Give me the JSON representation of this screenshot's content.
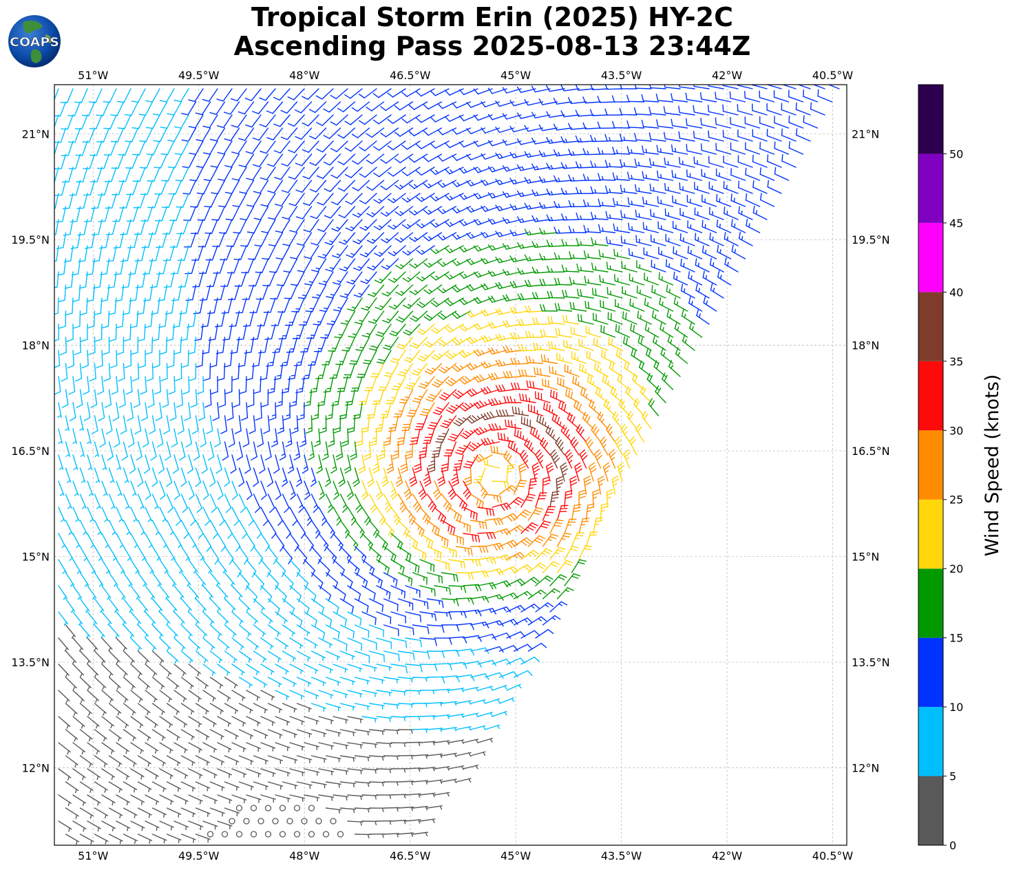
{
  "title": {
    "line1": "Tropical Storm Erin (2025) HY-2C",
    "line2": "Ascending Pass 2025-08-13 23:44Z"
  },
  "logo": {
    "text": "COAPS"
  },
  "chart_data": {
    "type": "wind-barb map",
    "lon_range": [
      -51.55,
      -40.3
    ],
    "lat_range": [
      10.9,
      21.7
    ],
    "x_ticks": [
      {
        "value": -51.0,
        "label": "51°W"
      },
      {
        "value": -49.5,
        "label": "49.5°W"
      },
      {
        "value": -48.0,
        "label": "48°W"
      },
      {
        "value": -46.5,
        "label": "46.5°W"
      },
      {
        "value": -45.0,
        "label": "45°W"
      },
      {
        "value": -43.5,
        "label": "43.5°W"
      },
      {
        "value": -42.0,
        "label": "42°W"
      },
      {
        "value": -40.5,
        "label": "40.5°W"
      }
    ],
    "y_ticks": [
      {
        "value": 21.0,
        "label": "21°N"
      },
      {
        "value": 19.5,
        "label": "19.5°N"
      },
      {
        "value": 18.0,
        "label": "18°N"
      },
      {
        "value": 16.5,
        "label": "16.5°N"
      },
      {
        "value": 15.0,
        "label": "15°N"
      },
      {
        "value": 13.5,
        "label": "13.5°N"
      },
      {
        "value": 12.0,
        "label": "12°N"
      }
    ],
    "grid": true,
    "storm_center": {
      "lon": -45.3,
      "lat": 16.15
    },
    "swath_edge": {
      "lat_start": 11.0,
      "lon_at_start": -46.3,
      "slope_lon_per_lat": 0.57
    },
    "colorbar": {
      "label": "Wind Speed (knots)",
      "bins": [
        {
          "min": 0,
          "max": 5,
          "color": "#595959"
        },
        {
          "min": 5,
          "max": 10,
          "color": "#00bfff"
        },
        {
          "min": 10,
          "max": 15,
          "color": "#0033ff"
        },
        {
          "min": 15,
          "max": 20,
          "color": "#009900"
        },
        {
          "min": 20,
          "max": 25,
          "color": "#ffd60a"
        },
        {
          "min": 25,
          "max": 30,
          "color": "#ff8c00"
        },
        {
          "min": 30,
          "max": 35,
          "color": "#ff0a0a"
        },
        {
          "min": 35,
          "max": 40,
          "color": "#803c2a"
        },
        {
          "min": 40,
          "max": 45,
          "color": "#ff00ff"
        },
        {
          "min": 45,
          "max": 50,
          "color": "#8000bf"
        },
        {
          "min": 50,
          "max": 55,
          "color": "#2d004f"
        }
      ],
      "tick_labels": [
        "0",
        "5",
        "10",
        "15",
        "20",
        "25",
        "30",
        "35",
        "40",
        "45",
        "50"
      ]
    }
  }
}
